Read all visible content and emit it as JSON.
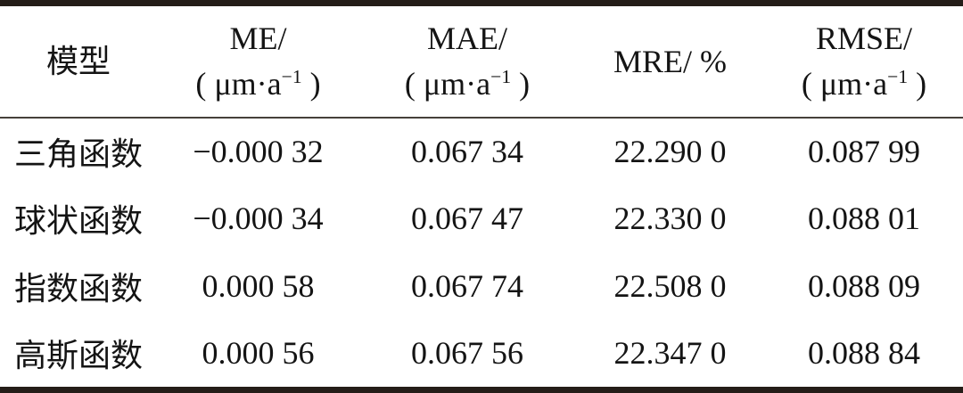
{
  "table": {
    "title_hint": "variogram-model-accuracy-table",
    "columns": [
      {
        "label": "模型",
        "unit_pre": "",
        "unit_sup": "",
        "unit_post": ""
      },
      {
        "label": "ME/",
        "unit_pre": "( μm·a",
        "unit_sup": "−1",
        "unit_post": " )"
      },
      {
        "label": "MAE/",
        "unit_pre": "( μm·a",
        "unit_sup": "−1",
        "unit_post": " )"
      },
      {
        "label": "MRE/ %",
        "unit_pre": "",
        "unit_sup": "",
        "unit_post": ""
      },
      {
        "label": "RMSE/",
        "unit_pre": "( μm·a",
        "unit_sup": "−1",
        "unit_post": " )"
      }
    ],
    "rows": [
      [
        "三角函数",
        "−0.000 32",
        "0.067 34",
        "22.290 0",
        "0.087 99"
      ],
      [
        "球状函数",
        "−0.000 34",
        "0.067 47",
        "22.330 0",
        "0.088 01"
      ],
      [
        "指数函数",
        "0.000 58",
        "0.067 74",
        "22.508 0",
        "0.088 09"
      ],
      [
        "高斯函数",
        "0.000 56",
        "0.067 56",
        "22.347 0",
        "0.088 84"
      ]
    ],
    "colors": {
      "thick_rule": "#241d18",
      "thin_rule": "#46403a",
      "text": "#141414",
      "background": "#ffffff"
    }
  }
}
